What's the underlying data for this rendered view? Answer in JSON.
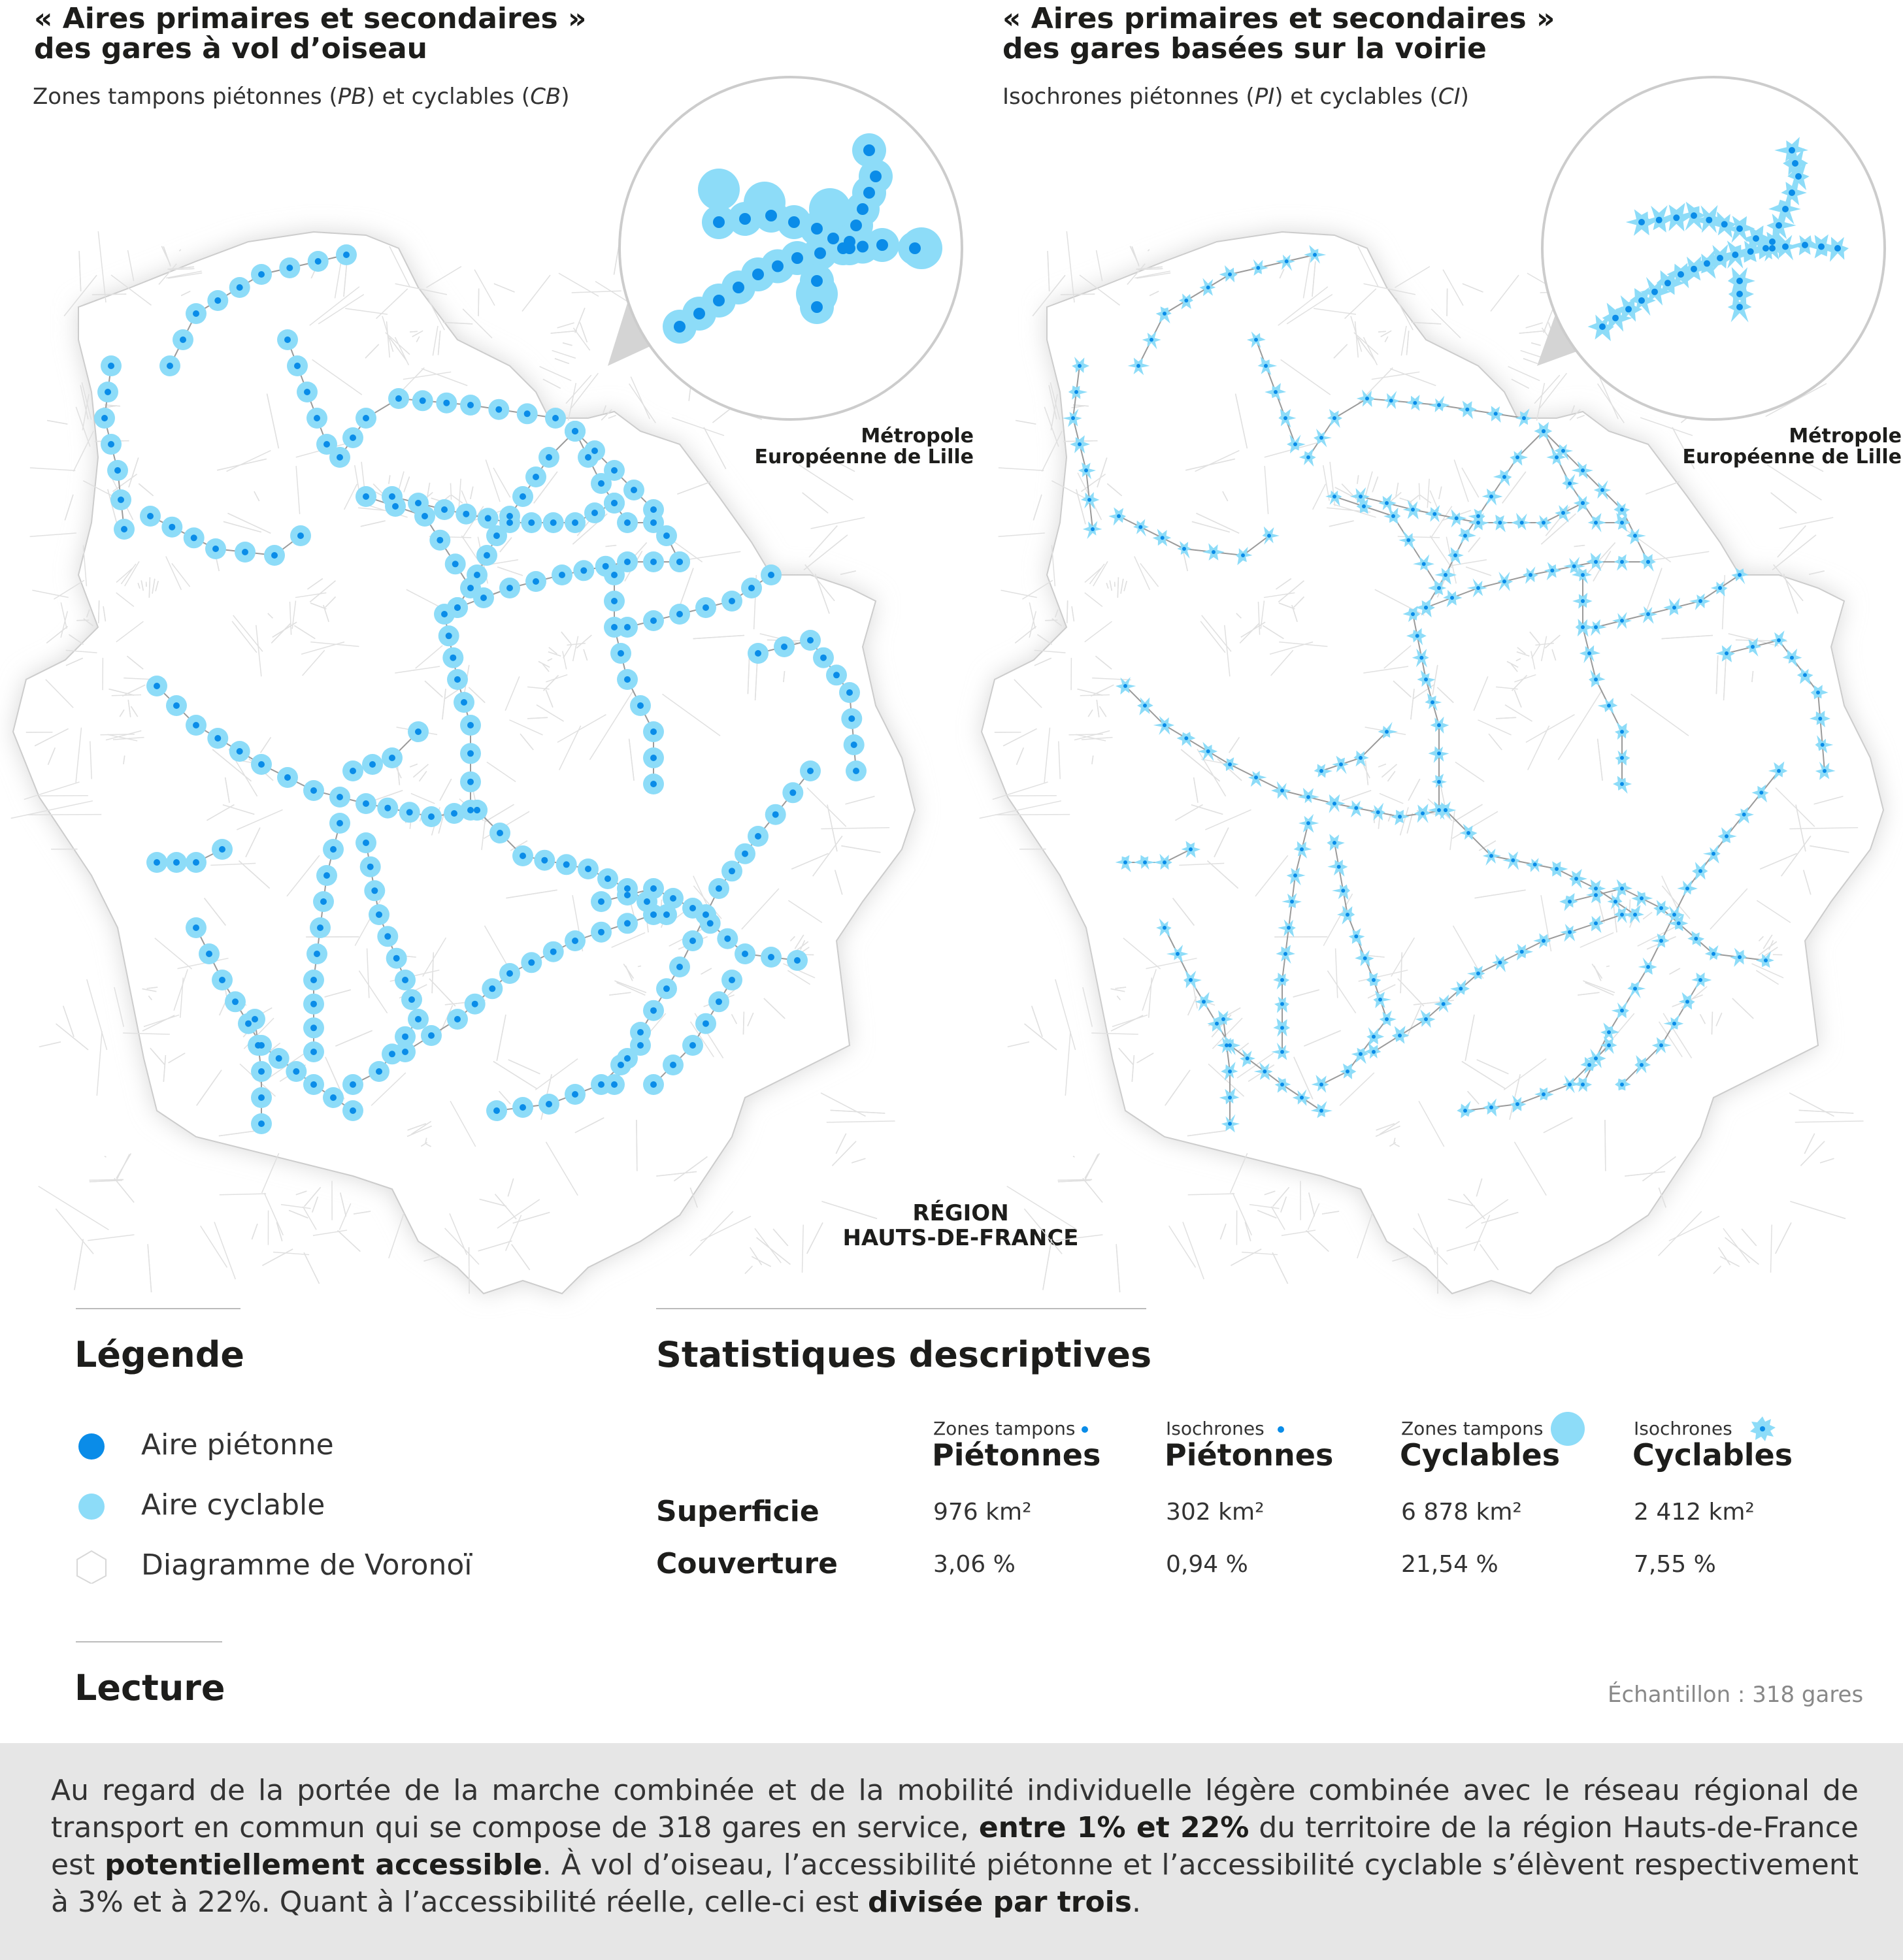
{
  "colors": {
    "pedestrian": "#0a8ce8",
    "cycle": "#8ddcf8",
    "voronoi": "#dcdcdc",
    "rail": "#9a9a9a",
    "reading_bg": "#e6e6e6"
  },
  "left_map": {
    "title_line1": "« Aires primaires et secondaires »",
    "title_line2": "des gares à vol d’oiseau",
    "subtitle_a": "Zones tampons piétonnes (",
    "subtitle_pb": "PB",
    "subtitle_b": ") et cyclables (",
    "subtitle_cb": "CB",
    "subtitle_c": ")",
    "inset_label_line1": "Métropole",
    "inset_label_line2": "Européenne de Lille",
    "region_line1": "RÉGION",
    "region_line2": "HAUTS-DE-FRANCE"
  },
  "right_map": {
    "title_line1": "« Aires primaires et secondaires »",
    "title_line2": "des gares basées sur la voirie",
    "subtitle_a": "Isochrones piétonnes (",
    "subtitle_pi": "PI",
    "subtitle_b": ") et cyclables (",
    "subtitle_ci": "CI",
    "subtitle_c": ")",
    "inset_label_line1": "Métropole",
    "inset_label_line2": "Européenne de Lille"
  },
  "legend": {
    "title": "Légende",
    "items": [
      {
        "label": "Aire piétonne",
        "icon": "pedestrian-dot-icon"
      },
      {
        "label": "Aire cyclable",
        "icon": "cycle-dot-icon"
      },
      {
        "label": "Diagramme de Voronoï",
        "icon": "voronoi-hexagon-icon"
      }
    ]
  },
  "stats": {
    "title": "Statistiques descriptives",
    "columns": [
      {
        "small": "Zones tampons",
        "head": "Piétonnes",
        "icon": "pedestrian-buffer-icon"
      },
      {
        "small": "Isochrones",
        "head": "Piétonnes",
        "icon": "pedestrian-isochrone-icon"
      },
      {
        "small": "Zones tampons",
        "head": "Cyclables",
        "icon": "cycle-buffer-icon"
      },
      {
        "small": "Isochrones",
        "head": "Cyclables",
        "icon": "cycle-isochrone-icon"
      }
    ],
    "rows": [
      {
        "label": "Superficie",
        "values": [
          "976 km²",
          "302 km²",
          "6 878 km²",
          "2 412 km²"
        ]
      },
      {
        "label": "Couverture",
        "values": [
          "3,06 %",
          "0,94 %",
          "21,54 %",
          "7,55 %"
        ]
      }
    ]
  },
  "reading": {
    "title": "Lecture",
    "sample": "Échantillon : 318 gares",
    "text_1": "Au regard de la portée de la marche combinée et de la mobilité individuelle légère combinée avec le réseau régional de transport en commun qui se compose de 318 gares en service, ",
    "bold_1": "entre 1% et 22%",
    "text_2": " du territoire de la région Hauts-de-France est ",
    "bold_2": "potentiellement accessible",
    "text_3": ". À vol d’oiseau, l’accessibilité piétonne et l’accessibilité cyclable s’élèvent respectivement à 3% et à 22%. Quant à l’accessibilité réelle, celle-ci est ",
    "bold_3": "divisée par trois",
    "text_4": "."
  }
}
